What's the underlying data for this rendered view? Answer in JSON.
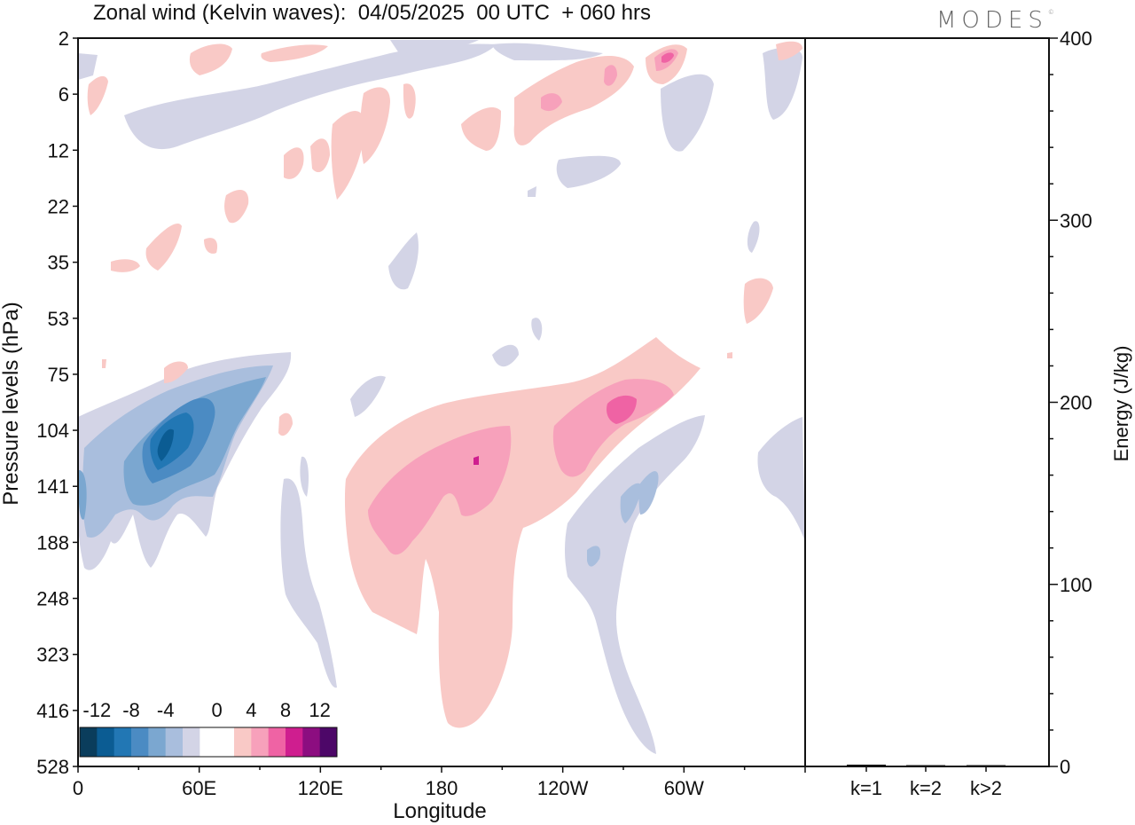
{
  "title": "Zonal wind (Kelvin waves):  04/05/2025  00 UTC  + 060 hrs",
  "brand": "MODES",
  "colors": {
    "neg_light": "#d3d4e6",
    "neg_mid1": "#a9bedd",
    "neg_mid2": "#7ba7d0",
    "neg_mid3": "#4b8bc3",
    "neg_dark1": "#2277b4",
    "neg_dark2": "#0b5c93",
    "neg_darkest": "#0a3d5c",
    "pos_light": "#f9c9c6",
    "pos_mid1": "#f7a1bb",
    "pos_mid2": "#ef63a4",
    "pos_mid3": "#cf1e8f",
    "pos_dark": "#8c0d80",
    "pos_darkest": "#4d0768"
  },
  "chart_data": [
    {
      "type": "heatmap",
      "title": "Zonal wind (Kelvin waves):  04/05/2025  00 UTC  + 060 hrs",
      "xlabel": "Longitude",
      "ylabel": "Pressure levels (hPa)",
      "x_ticks": [
        "0",
        "60E",
        "120E",
        "180",
        "120W",
        "60W"
      ],
      "y_ticks": [
        "2",
        "6",
        "12",
        "22",
        "35",
        "53",
        "75",
        "104",
        "141",
        "188",
        "248",
        "323",
        "416",
        "528"
      ],
      "colorbar": {
        "labels": [
          "-12",
          "-8",
          "-4",
          "0",
          "4",
          "8",
          "12"
        ],
        "levels": [
          -14,
          -12,
          -10,
          -8,
          -6,
          -4,
          -2,
          2,
          4,
          6,
          8,
          10,
          12,
          14
        ]
      },
      "features": [
        {
          "sign": "negative",
          "center_lon": 40,
          "center_p": 104,
          "peak": -12
        },
        {
          "sign": "positive",
          "center_lon": 185,
          "center_p": 141,
          "peak": 8
        },
        {
          "sign": "positive",
          "center_lon": 255,
          "center_p": 104,
          "peak": 10
        },
        {
          "sign": "negative",
          "center_lon": 265,
          "center_p": 188,
          "peak": -6
        },
        {
          "sign": "positive",
          "center_lon": 280,
          "center_p": 4,
          "peak": 8
        }
      ]
    },
    {
      "type": "bar",
      "categories": [
        "k=1",
        "k=2",
        "k>2"
      ],
      "values": [
        1.0,
        0.3,
        0.3
      ],
      "ylabel": "Energy (J/kg)",
      "ylim": [
        0,
        400
      ],
      "y_ticks": [
        "0",
        "100",
        "200",
        "300",
        "400"
      ]
    }
  ]
}
